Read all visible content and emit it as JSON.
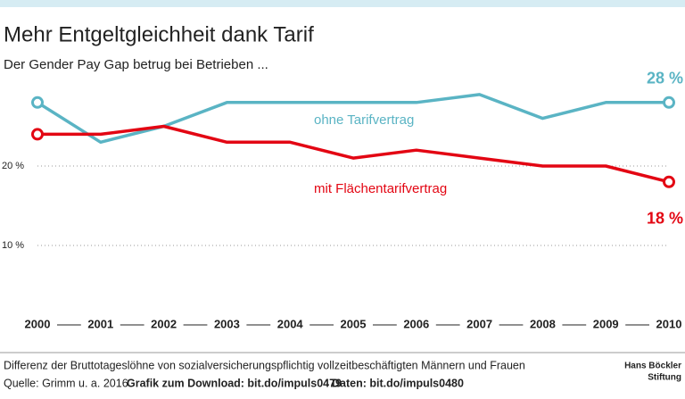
{
  "chart_data": {
    "type": "line",
    "title": "Mehr Entgeltgleichheit dank Tarif",
    "subtitle": "Der Gender Pay Gap betrug bei Betrieben ...",
    "categories": [
      "2000",
      "2001",
      "2002",
      "2003",
      "2004",
      "2005",
      "2006",
      "2007",
      "2008",
      "2009",
      "2010"
    ],
    "series": [
      {
        "name": "ohne Tarifvertrag",
        "color": "#5ab4c4",
        "values": [
          28,
          23,
          25,
          28,
          28,
          28,
          28,
          29,
          26,
          28,
          28
        ],
        "value_labels": {
          "10": "28 %"
        }
      },
      {
        "name": "mit Flächentarifvertrag",
        "color": "#e30613",
        "values": [
          24,
          24,
          25,
          23,
          23,
          21,
          22,
          21,
          20,
          20,
          18
        ],
        "value_labels": {
          "10": "18 %"
        }
      }
    ],
    "ylim": [
      0,
      30
    ],
    "yticks": [
      {
        "value": 10,
        "label": "10 %"
      },
      {
        "value": 20,
        "label": "20 %"
      }
    ],
    "grid": true,
    "note": "Differenz der Bruttotageslöhne von sozialversicherungspflichtig vollzeitbeschäftigten Männern und Frauen",
    "source": "Quelle: Grimm u. a. 2016",
    "download": "Grafik zum Download: bit.do/impuls0479",
    "data_link": "Daten: bit.do/impuls0480",
    "logo": [
      "Hans Böckler",
      "Stiftung"
    ]
  }
}
